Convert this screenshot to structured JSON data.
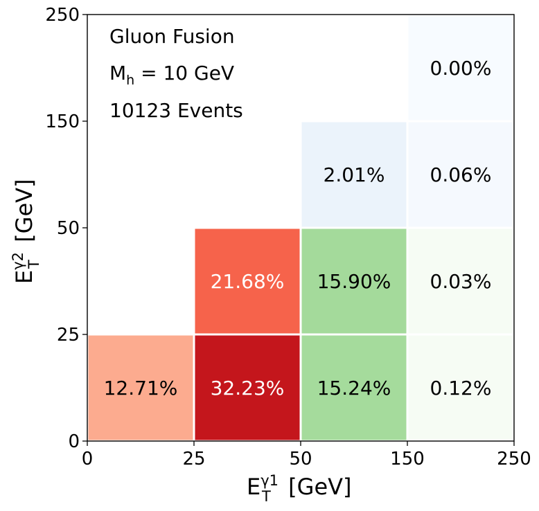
{
  "chart_data": {
    "type": "heatmap",
    "x_ticks": [
      "0",
      "25",
      "50",
      "150",
      "250"
    ],
    "y_ticks": [
      "0",
      "25",
      "50",
      "150",
      "250"
    ],
    "xlabel": {
      "base": "E",
      "sub": "T",
      "sup": "γ1",
      "unit": " [GeV]"
    },
    "ylabel": {
      "base": "E",
      "sub": "T",
      "sup": "γ2",
      "unit": " [GeV]"
    },
    "annotations": {
      "line1": "Gluon Fusion",
      "line2_base": "M",
      "line2_sub": "h",
      "line2_rest": " = 10 GeV",
      "line3": "10123 Events"
    },
    "cells": [
      {
        "xbin": 0,
        "ybin": 0,
        "label": "12.71%",
        "value": 12.71,
        "color": "#fcab8f",
        "text_color": "#000000"
      },
      {
        "xbin": 1,
        "ybin": 0,
        "label": "32.23%",
        "value": 32.23,
        "color": "#c4161c",
        "text_color": "#ffffff"
      },
      {
        "xbin": 2,
        "ybin": 0,
        "label": "15.24%",
        "value": 15.24,
        "color": "#a5db9c",
        "text_color": "#000000"
      },
      {
        "xbin": 3,
        "ybin": 0,
        "label": "0.12%",
        "value": 0.12,
        "color": "#f6fcf4",
        "text_color": "#000000"
      },
      {
        "xbin": 1,
        "ybin": 1,
        "label": "21.68%",
        "value": 21.68,
        "color": "#f6634b",
        "text_color": "#ffffff"
      },
      {
        "xbin": 2,
        "ybin": 1,
        "label": "15.90%",
        "value": 15.9,
        "color": "#a4da9b",
        "text_color": "#000000"
      },
      {
        "xbin": 3,
        "ybin": 1,
        "label": "0.03%",
        "value": 0.03,
        "color": "#f6fcf4",
        "text_color": "#000000"
      },
      {
        "xbin": 2,
        "ybin": 2,
        "label": "2.01%",
        "value": 2.01,
        "color": "#ebf3fb",
        "text_color": "#000000"
      },
      {
        "xbin": 3,
        "ybin": 2,
        "label": "0.06%",
        "value": 0.06,
        "color": "#f5f9fe",
        "text_color": "#000000"
      },
      {
        "xbin": 3,
        "ybin": 3,
        "label": "0.00%",
        "value": 0.0,
        "color": "#f7fbff",
        "text_color": "#000000"
      }
    ]
  }
}
